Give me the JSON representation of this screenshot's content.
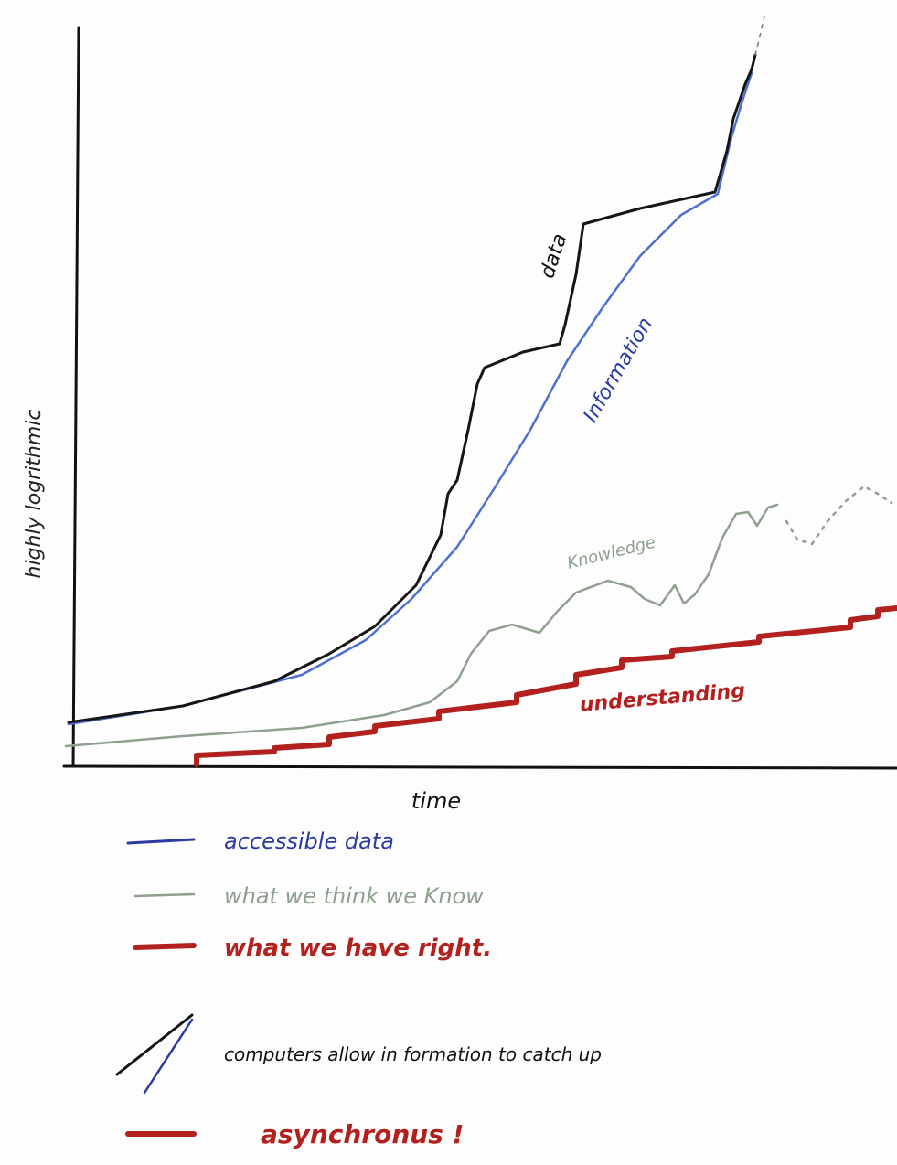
{
  "axes": {
    "y_label": "highly logrithmic",
    "x_label": "time"
  },
  "curve_labels": {
    "data": "data",
    "information": "Information",
    "knowledge": "Knowledge",
    "understanding": "understanding"
  },
  "legend": [
    "accessible data",
    "what we think we Know",
    "what we have right."
  ],
  "notes": [
    "computers allow in formation to catch up",
    "asynchronus !"
  ]
}
